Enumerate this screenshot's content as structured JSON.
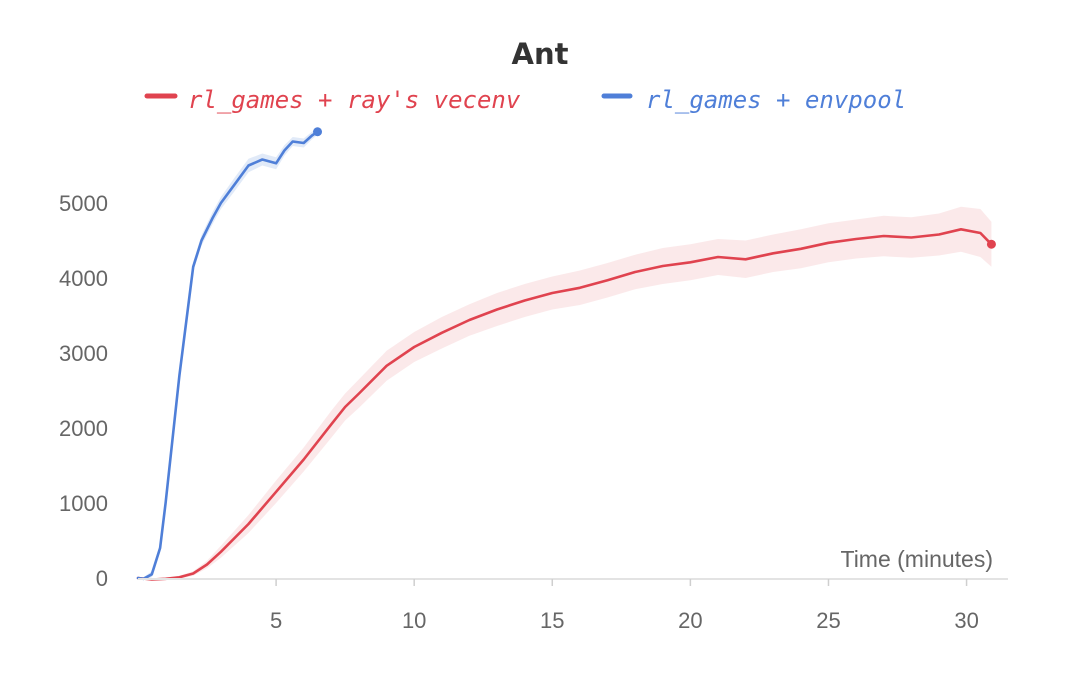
{
  "chart_data": {
    "type": "line",
    "title": "Ant",
    "xlabel": "Time (minutes)",
    "ylabel": "",
    "xlim": [
      0,
      31.5
    ],
    "ylim": [
      0,
      6000
    ],
    "xticks": [
      5,
      10,
      15,
      20,
      25,
      30
    ],
    "yticks": [
      0,
      1000,
      2000,
      3000,
      4000,
      5000
    ],
    "grid": false,
    "legend_position": "top",
    "series": [
      {
        "name": "rl_games + ray's vecenv",
        "color": "#e0434f",
        "band_color": "#f7d7d9",
        "x": [
          0.0,
          0.5,
          1.0,
          1.5,
          2.0,
          2.5,
          3.0,
          4.0,
          5.0,
          6.0,
          7.0,
          7.5,
          8.0,
          9.0,
          10.0,
          11.0,
          12.0,
          13.0,
          14.0,
          15.0,
          16.0,
          17.0,
          18.0,
          19.0,
          20.0,
          21.0,
          22.0,
          23.0,
          24.0,
          25.0,
          26.0,
          27.0,
          28.0,
          29.0,
          29.8,
          30.5,
          30.9
        ],
        "y": [
          0,
          -20,
          -10,
          10,
          60,
          180,
          350,
          720,
          1150,
          1580,
          2050,
          2280,
          2460,
          2830,
          3080,
          3270,
          3440,
          3580,
          3700,
          3800,
          3870,
          3970,
          4080,
          4160,
          4210,
          4280,
          4250,
          4330,
          4390,
          4470,
          4520,
          4560,
          4540,
          4580,
          4650,
          4600,
          4450
        ],
        "band_halfwidth": [
          0,
          15,
          15,
          20,
          30,
          50,
          80,
          120,
          150,
          160,
          180,
          180,
          190,
          200,
          200,
          210,
          210,
          220,
          220,
          220,
          230,
          230,
          230,
          240,
          240,
          240,
          250,
          250,
          260,
          260,
          260,
          270,
          270,
          280,
          300,
          320,
          300
        ]
      },
      {
        "name": "rl_games + envpool",
        "color": "#4f7fd8",
        "band_color": "#c8d9f3",
        "x": [
          0.0,
          0.2,
          0.5,
          0.8,
          1.0,
          1.5,
          2.0,
          2.3,
          2.7,
          3.0,
          3.5,
          4.0,
          4.5,
          5.0,
          5.3,
          5.6,
          6.0,
          6.3,
          6.5
        ],
        "y": [
          0,
          -10,
          50,
          400,
          1000,
          2700,
          4150,
          4500,
          4800,
          5000,
          5250,
          5500,
          5580,
          5530,
          5700,
          5820,
          5800,
          5900,
          5950
        ],
        "band_halfwidth": [
          0,
          20,
          40,
          60,
          60,
          60,
          60,
          70,
          80,
          80,
          90,
          90,
          80,
          80,
          70,
          60,
          60,
          50,
          40
        ]
      }
    ]
  }
}
